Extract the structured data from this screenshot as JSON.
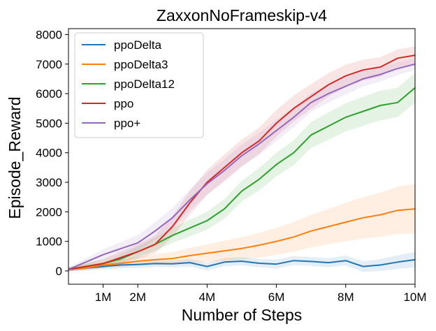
{
  "chart_data": {
    "type": "line",
    "title": "ZaxxonNoFrameskip-v4",
    "xlabel": "Number of Steps",
    "ylabel": "Episode_Reward",
    "xlim": [
      0,
      10000000
    ],
    "ylim": [
      -450,
      8200
    ],
    "x_ticks": [
      {
        "value": 1000000,
        "label": "1M"
      },
      {
        "value": 2000000,
        "label": "2M"
      },
      {
        "value": 4000000,
        "label": "4M"
      },
      {
        "value": 6000000,
        "label": "6M"
      },
      {
        "value": 8000000,
        "label": "8M"
      },
      {
        "value": 10000000,
        "label": "10M"
      }
    ],
    "y_ticks": [
      {
        "value": 0,
        "label": "0"
      },
      {
        "value": 1000,
        "label": "1000"
      },
      {
        "value": 2000,
        "label": "2000"
      },
      {
        "value": 3000,
        "label": "3000"
      },
      {
        "value": 4000,
        "label": "4000"
      },
      {
        "value": 5000,
        "label": "5000"
      },
      {
        "value": 6000,
        "label": "6000"
      },
      {
        "value": 7000,
        "label": "7000"
      },
      {
        "value": 8000,
        "label": "8000"
      }
    ],
    "legend_position": "top-left",
    "grid": false,
    "x": [
      0,
      500000,
      1000000,
      1500000,
      2000000,
      2500000,
      3000000,
      3500000,
      4000000,
      4500000,
      5000000,
      5500000,
      6000000,
      6500000,
      7000000,
      7500000,
      8000000,
      8500000,
      9000000,
      9500000,
      10000000
    ],
    "series": [
      {
        "name": "ppoDelta",
        "color": "#1f77b4",
        "values": [
          50,
          100,
          150,
          200,
          220,
          250,
          240,
          280,
          150,
          300,
          330,
          260,
          230,
          350,
          320,
          280,
          350,
          150,
          200,
          300,
          380
        ],
        "band": [
          60,
          80,
          100,
          110,
          120,
          120,
          120,
          130,
          130,
          140,
          140,
          140,
          150,
          150,
          150,
          150,
          170,
          180,
          200,
          230,
          260
        ]
      },
      {
        "name": "ppoDelta3",
        "color": "#ff7f0e",
        "values": [
          50,
          100,
          200,
          250,
          330,
          380,
          420,
          520,
          600,
          680,
          760,
          870,
          1000,
          1150,
          1350,
          1500,
          1650,
          1800,
          1900,
          2050,
          2100
        ],
        "band": [
          60,
          80,
          100,
          120,
          150,
          180,
          220,
          260,
          300,
          340,
          380,
          420,
          460,
          500,
          550,
          600,
          650,
          700,
          750,
          800,
          850
        ]
      },
      {
        "name": "ppoDelta12",
        "color": "#2ca02c",
        "values": [
          50,
          150,
          250,
          400,
          650,
          900,
          1200,
          1450,
          1700,
          2100,
          2700,
          3100,
          3600,
          4000,
          4600,
          4900,
          5200,
          5400,
          5600,
          5700,
          6200
        ],
        "band": [
          60,
          100,
          120,
          150,
          180,
          220,
          250,
          280,
          300,
          330,
          350,
          380,
          400,
          420,
          440,
          460,
          480,
          490,
          500,
          500,
          500
        ]
      },
      {
        "name": "ppo",
        "color": "#d62728",
        "values": [
          50,
          150,
          250,
          450,
          650,
          900,
          1500,
          2300,
          3000,
          3500,
          4000,
          4400,
          5000,
          5500,
          5900,
          6300,
          6600,
          6800,
          6900,
          7200,
          7300
        ],
        "band": [
          60,
          100,
          150,
          200,
          250,
          300,
          350,
          400,
          420,
          440,
          450,
          450,
          450,
          440,
          420,
          400,
          380,
          350,
          330,
          300,
          300
        ]
      },
      {
        "name": "ppo+",
        "color": "#9467bd",
        "values": [
          50,
          300,
          550,
          750,
          950,
          1350,
          1800,
          2400,
          2950,
          3400,
          3900,
          4300,
          4750,
          5200,
          5700,
          6000,
          6250,
          6500,
          6650,
          6850,
          7000
        ],
        "band": [
          60,
          120,
          180,
          220,
          260,
          300,
          330,
          360,
          380,
          380,
          380,
          370,
          360,
          340,
          320,
          300,
          280,
          260,
          240,
          220,
          200
        ]
      }
    ]
  }
}
